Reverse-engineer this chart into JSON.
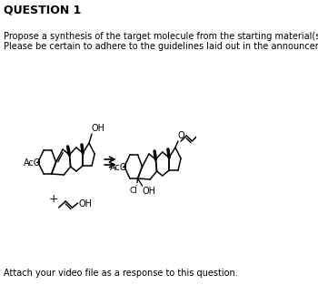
{
  "title": "QUESTION 1",
  "line1": "Propose a synthesis of the target molecule from the starting material(s) provided.",
  "line2": "Please be certain to adhere to the guidelines laid out in the announcement.",
  "footer": "Attach your video file as a response to this question.",
  "bg_color": "#ffffff",
  "text_color": "#000000"
}
